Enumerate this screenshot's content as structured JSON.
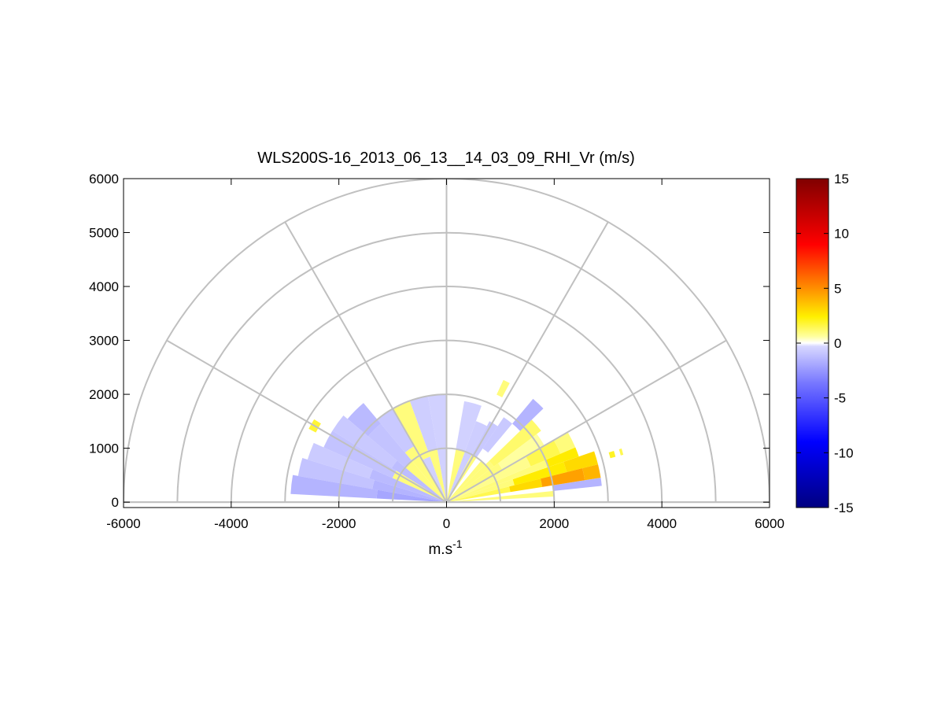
{
  "chart_data": {
    "type": "heatmap",
    "subtype": "polar RHI scan sector",
    "title": "WLS200S-16_2013_06_13__14_03_09_RHI_Vr (m/s)",
    "xlabel": "m.s",
    "xlabel_superscript": "-1",
    "ylabel": "",
    "xlim": [
      -6000,
      6000
    ],
    "ylim": [
      -100,
      6000
    ],
    "x_ticks": [
      "-6000",
      "-4000",
      "-2000",
      "0",
      "2000",
      "4000",
      "6000"
    ],
    "x_tick_values": [
      -6000,
      -4000,
      -2000,
      0,
      2000,
      4000,
      6000
    ],
    "y_ticks": [
      "0",
      "1000",
      "2000",
      "3000",
      "4000",
      "5000",
      "6000"
    ],
    "y_tick_values": [
      0,
      1000,
      2000,
      3000,
      4000,
      5000,
      6000
    ],
    "polar_grid": {
      "range_rings": [
        1000,
        2000,
        3000,
        4000,
        5000,
        6000
      ],
      "spokes_deg": [
        0,
        30,
        60,
        90,
        120,
        150,
        180
      ]
    },
    "colorbar": {
      "min": -15,
      "max": 15,
      "ticks": [
        "15",
        "10",
        "5",
        "0",
        "-5",
        "-10",
        "-15"
      ],
      "tick_values": [
        15,
        10,
        5,
        0,
        -5,
        -10,
        -15
      ]
    },
    "radial_bins": [
      {
        "r0": 0,
        "r1": 2000,
        "a0": 3,
        "a1": 6,
        "v": 1.0
      },
      {
        "r0": 2000,
        "r1": 2900,
        "a0": 6,
        "a1": 9,
        "v": -1.5
      },
      {
        "r0": 0,
        "r1": 1200,
        "a0": 9,
        "a1": 14,
        "v": 1.5
      },
      {
        "r0": 1200,
        "r1": 1800,
        "a0": 9,
        "a1": 14,
        "v": 3.0
      },
      {
        "r0": 1800,
        "r1": 2600,
        "a0": 9,
        "a1": 14,
        "v": 4.5
      },
      {
        "r0": 2600,
        "r1": 2900,
        "a0": 9,
        "a1": 14,
        "v": 4.0
      },
      {
        "r0": 0,
        "r1": 1300,
        "a0": 14,
        "a1": 19,
        "v": 1.0
      },
      {
        "r0": 1300,
        "r1": 2300,
        "a0": 14,
        "a1": 19,
        "v": 2.5
      },
      {
        "r0": 2300,
        "r1": 2900,
        "a0": 14,
        "a1": 19,
        "v": 3.0
      },
      {
        "r0": 0,
        "r1": 2000,
        "a0": 19,
        "a1": 23,
        "v": 1.0
      },
      {
        "r0": 2000,
        "r1": 2600,
        "a0": 19,
        "a1": 23,
        "v": 2.5
      },
      {
        "r0": 3150,
        "r1": 3250,
        "a0": 15,
        "a1": 17,
        "v": 2.0
      },
      {
        "r0": 3350,
        "r1": 3400,
        "a0": 15,
        "a1": 17,
        "v": 1.5
      },
      {
        "r0": 0,
        "r1": 1700,
        "a0": 23,
        "a1": 30,
        "v": 0.8
      },
      {
        "r0": 1700,
        "r1": 2300,
        "a0": 23,
        "a1": 30,
        "v": 1.5
      },
      {
        "r0": 2300,
        "r1": 2600,
        "a0": 23,
        "a1": 30,
        "v": 1.0
      },
      {
        "r0": 0,
        "r1": 1200,
        "a0": 30,
        "a1": 37,
        "v": 1.0
      },
      {
        "r0": 1200,
        "r1": 2100,
        "a0": 30,
        "a1": 37,
        "v": 0.6
      },
      {
        "r0": 0,
        "r1": 1100,
        "a0": 37,
        "a1": 44,
        "v": 1.0
      },
      {
        "r0": 1100,
        "r1": 2200,
        "a0": 37,
        "a1": 44,
        "v": 1.2
      },
      {
        "r0": 1900,
        "r1": 2500,
        "a0": 44,
        "a1": 50,
        "v": -1.5
      },
      {
        "r0": 0,
        "r1": 1000,
        "a0": 44,
        "a1": 50,
        "v": 1.0
      },
      {
        "r0": 1200,
        "r1": 1900,
        "a0": 50,
        "a1": 56,
        "v": -0.8
      },
      {
        "r0": 0,
        "r1": 1000,
        "a0": 56,
        "a1": 62,
        "v": 1.0
      },
      {
        "r0": 1000,
        "r1": 1700,
        "a0": 56,
        "a1": 62,
        "v": -0.8
      },
      {
        "r0": 2200,
        "r1": 2500,
        "a0": 62,
        "a1": 65,
        "v": 1.0
      },
      {
        "r0": 0,
        "r1": 1600,
        "a0": 62,
        "a1": 70,
        "v": -0.6
      },
      {
        "r0": 0,
        "r1": 1000,
        "a0": 70,
        "a1": 80,
        "v": 1.0
      },
      {
        "r0": 1000,
        "r1": 1900,
        "a0": 70,
        "a1": 80,
        "v": -0.5
      },
      {
        "r0": 0,
        "r1": 2000,
        "a0": 90,
        "a1": 100,
        "v": -0.5
      },
      {
        "r0": 0,
        "r1": 1000,
        "a0": 100,
        "a1": 110,
        "v": 1.0
      },
      {
        "r0": 1000,
        "r1": 2000,
        "a0": 100,
        "a1": 110,
        "v": -0.6
      },
      {
        "r0": 0,
        "r1": 900,
        "a0": 110,
        "a1": 120,
        "v": -0.5
      },
      {
        "r0": 900,
        "r1": 2000,
        "a0": 110,
        "a1": 120,
        "v": 1.0
      },
      {
        "r0": 0,
        "r1": 1200,
        "a0": 120,
        "a1": 130,
        "v": 1.0
      },
      {
        "r0": 1200,
        "r1": 2000,
        "a0": 120,
        "a1": 130,
        "v": -0.8
      },
      {
        "r0": 0,
        "r1": 1000,
        "a0": 130,
        "a1": 140,
        "v": 1.0
      },
      {
        "r0": 1000,
        "r1": 1900,
        "a0": 130,
        "a1": 140,
        "v": -1.0
      },
      {
        "r0": 1900,
        "r1": 2400,
        "a0": 130,
        "a1": 140,
        "v": -1.3
      },
      {
        "r0": 0,
        "r1": 1200,
        "a0": 140,
        "a1": 148,
        "v": -1.2
      },
      {
        "r0": 1200,
        "r1": 2500,
        "a0": 140,
        "a1": 148,
        "v": -0.8
      },
      {
        "r0": 0,
        "r1": 1100,
        "a0": 148,
        "a1": 156,
        "v": 1.0
      },
      {
        "r0": 1100,
        "r1": 2500,
        "a0": 148,
        "a1": 156,
        "v": -1.0
      },
      {
        "r0": 2750,
        "r1": 2900,
        "a0": 148,
        "a1": 152,
        "v": 1.8
      },
      {
        "r0": 0,
        "r1": 1500,
        "a0": 156,
        "a1": 163,
        "v": -1.3
      },
      {
        "r0": 1500,
        "r1": 2700,
        "a0": 156,
        "a1": 163,
        "v": -0.7
      },
      {
        "r0": 0,
        "r1": 1400,
        "a0": 163,
        "a1": 170,
        "v": -1.5
      },
      {
        "r0": 1400,
        "r1": 2800,
        "a0": 163,
        "a1": 170,
        "v": -1.0
      },
      {
        "r0": 0,
        "r1": 1300,
        "a0": 170,
        "a1": 177,
        "v": -2.0
      },
      {
        "r0": 1300,
        "r1": 2900,
        "a0": 170,
        "a1": 177,
        "v": -1.5
      }
    ]
  }
}
